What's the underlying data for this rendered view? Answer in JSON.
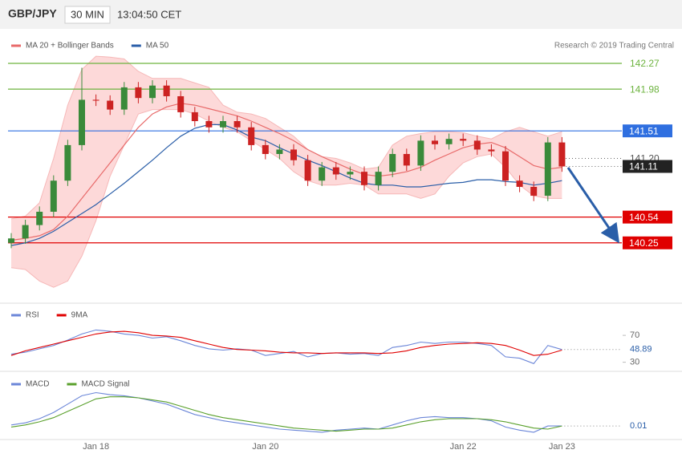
{
  "header": {
    "symbol": "GBP/JPY",
    "timeframe": "30 MIN",
    "time": "13:04:50 CET"
  },
  "credit": "Research © 2019 Trading Central",
  "chart_data": [
    {
      "type": "candlestick",
      "ylim": [
        139.58,
        142.64
      ],
      "up_color": "#3a8a3a",
      "down_color": "#cc2222",
      "candles": {
        "open": [
          140.25,
          140.3,
          140.45,
          140.6,
          140.95,
          141.35,
          141.86,
          141.85,
          141.75,
          142.0,
          141.88,
          142.02,
          141.9,
          141.72,
          141.62,
          141.55,
          141.62,
          141.55,
          141.35,
          141.25,
          141.3,
          141.18,
          140.95,
          141.1,
          141.02,
          141.05,
          140.9,
          141.05,
          141.25,
          141.12,
          141.4,
          141.36,
          141.42,
          141.4,
          141.3,
          141.28,
          140.95,
          140.88,
          140.78,
          141.38
        ],
        "high": [
          140.36,
          140.51,
          140.66,
          141.01,
          141.41,
          142.22,
          141.92,
          141.91,
          142.06,
          142.06,
          142.08,
          142.08,
          141.96,
          141.78,
          141.68,
          141.68,
          141.68,
          141.61,
          141.41,
          141.36,
          141.36,
          141.24,
          141.16,
          141.16,
          141.11,
          141.11,
          141.11,
          141.31,
          141.31,
          141.46,
          141.46,
          141.48,
          141.48,
          141.46,
          141.36,
          141.34,
          141.01,
          140.94,
          141.44,
          141.44
        ],
        "low": [
          140.19,
          140.24,
          140.39,
          140.54,
          140.89,
          141.29,
          141.79,
          141.69,
          141.69,
          141.82,
          141.82,
          141.84,
          141.66,
          141.56,
          141.49,
          141.49,
          141.49,
          141.29,
          141.19,
          141.19,
          141.12,
          140.89,
          140.89,
          140.96,
          140.96,
          140.84,
          140.84,
          140.99,
          141.06,
          141.06,
          141.3,
          141.3,
          141.34,
          141.24,
          141.22,
          140.89,
          140.82,
          140.72,
          140.72,
          141.05
        ],
        "close": [
          140.3,
          140.45,
          140.6,
          140.95,
          141.35,
          141.86,
          141.85,
          141.75,
          142.0,
          141.88,
          142.02,
          141.9,
          141.72,
          141.62,
          141.55,
          141.62,
          141.55,
          141.35,
          141.25,
          141.3,
          141.18,
          140.95,
          141.1,
          141.02,
          141.05,
          140.9,
          141.05,
          141.25,
          141.12,
          141.4,
          141.36,
          141.42,
          141.4,
          141.3,
          141.28,
          140.95,
          140.88,
          140.78,
          141.38,
          141.11
        ]
      },
      "series": [
        {
          "name": "MA 20 + Bollinger Bands",
          "color": "#e86a6a",
          "band_color": "#fdd9d9",
          "values": [
            140.28,
            140.3,
            140.33,
            140.4,
            140.55,
            140.75,
            140.95,
            141.15,
            141.35,
            141.55,
            141.7,
            141.78,
            141.82,
            141.8,
            141.76,
            141.72,
            141.68,
            141.62,
            141.55,
            141.48,
            141.4,
            141.3,
            141.22,
            141.15,
            141.08,
            141.02,
            141.0,
            141.02,
            141.05,
            141.1,
            141.18,
            141.25,
            141.32,
            141.36,
            141.38,
            141.32,
            141.22,
            141.12,
            141.08,
            141.1
          ],
          "upper": [
            140.52,
            140.55,
            140.7,
            141.2,
            141.8,
            142.2,
            142.35,
            142.34,
            142.32,
            142.18,
            142.1,
            142.1,
            142.1,
            142.05,
            142.0,
            141.8,
            141.72,
            141.7,
            141.65,
            141.55,
            141.45,
            141.3,
            141.22,
            141.2,
            141.15,
            141.08,
            141.1,
            141.35,
            141.45,
            141.48,
            141.5,
            141.5,
            141.49,
            141.45,
            141.42,
            141.5,
            141.55,
            141.5,
            141.45,
            141.5
          ],
          "lower": [
            139.97,
            139.95,
            139.82,
            139.75,
            139.82,
            140.1,
            140.5,
            141.0,
            141.35,
            141.7,
            141.75,
            141.75,
            141.75,
            141.7,
            141.62,
            141.55,
            141.5,
            141.4,
            141.3,
            141.2,
            141.05,
            140.95,
            140.9,
            140.9,
            140.92,
            140.9,
            140.8,
            140.8,
            140.8,
            140.75,
            140.8,
            141.0,
            141.15,
            141.22,
            141.25,
            141.1,
            140.9,
            140.78,
            140.75,
            140.75
          ]
        },
        {
          "name": "MA 50",
          "color": "#2a5ea8",
          "values": [
            140.22,
            140.25,
            140.3,
            140.38,
            140.48,
            140.58,
            140.68,
            140.8,
            140.92,
            141.05,
            141.18,
            141.32,
            141.45,
            141.54,
            141.58,
            141.58,
            141.52,
            141.44,
            141.4,
            141.32,
            141.25,
            141.18,
            141.12,
            141.05,
            140.98,
            140.92,
            140.9,
            140.9,
            140.88,
            140.88,
            140.9,
            140.92,
            140.93,
            140.96,
            140.96,
            140.94,
            140.93,
            140.9,
            140.92,
            140.95
          ]
        }
      ],
      "levels": [
        {
          "value": 142.27,
          "color": "#6db33f",
          "style": "solid",
          "tag": false
        },
        {
          "value": 141.98,
          "color": "#6db33f",
          "style": "solid",
          "tag": false
        },
        {
          "value": 141.51,
          "color": "#2f6fe0",
          "style": "solid",
          "tag": true
        },
        {
          "value": 141.2,
          "label": "141.20",
          "color": "#555555",
          "style": "dotted",
          "tag": false
        },
        {
          "value": 140.54,
          "color": "#e00000",
          "style": "solid",
          "tag": true
        },
        {
          "value": 140.25,
          "color": "#e00000",
          "style": "solid",
          "tag": true
        }
      ],
      "last_tag_color": "#222222"
    },
    {
      "type": "line",
      "ylim": [
        20,
        94
      ],
      "yticks": [
        70,
        30
      ],
      "series": [
        {
          "name": "RSI",
          "color": "#6b86d8",
          "values": [
            42,
            45,
            50,
            55,
            63,
            72,
            78,
            76,
            72,
            70,
            66,
            68,
            62,
            55,
            50,
            48,
            50,
            48,
            40,
            43,
            46,
            38,
            43,
            44,
            42,
            43,
            40,
            52,
            55,
            60,
            58,
            60,
            60,
            58,
            55,
            38,
            36,
            28,
            55,
            48.89
          ]
        },
        {
          "name": "9MA",
          "color": "#e00000",
          "values": [
            40,
            47,
            52,
            57,
            62,
            67,
            72,
            75,
            76,
            74,
            70,
            69,
            67,
            62,
            57,
            52,
            49,
            48,
            47,
            45,
            44,
            44,
            43,
            44,
            44,
            44,
            43,
            44,
            47,
            52,
            55,
            57,
            58,
            59,
            58,
            55,
            48,
            40,
            42,
            48
          ]
        }
      ]
    },
    {
      "type": "line",
      "ylim": [
        -0.12,
        0.48
      ],
      "categories": [
        null,
        null,
        null,
        null,
        null,
        null,
        "Jan 18",
        null,
        null,
        null,
        null,
        null,
        null,
        null,
        null,
        null,
        null,
        null,
        "Jan 20",
        null,
        null,
        null,
        null,
        null,
        null,
        null,
        null,
        null,
        null,
        null,
        null,
        null,
        "Jan 22",
        null,
        null,
        null,
        null,
        null,
        null,
        "Jan 23"
      ],
      "series": [
        {
          "name": "MACD",
          "color": "#6b86d8",
          "values": [
            0.02,
            0.04,
            0.08,
            0.14,
            0.22,
            0.3,
            0.33,
            0.31,
            0.3,
            0.28,
            0.25,
            0.22,
            0.17,
            0.12,
            0.09,
            0.06,
            0.04,
            0.02,
            0.0,
            -0.02,
            -0.03,
            -0.04,
            -0.05,
            -0.03,
            -0.02,
            -0.01,
            -0.02,
            0.02,
            0.06,
            0.09,
            0.1,
            0.09,
            0.09,
            0.08,
            0.06,
            0.0,
            -0.03,
            -0.05,
            0.01,
            0.01
          ]
        },
        {
          "name": "MACD Signal",
          "color": "#5aa02c",
          "values": [
            0.0,
            0.02,
            0.05,
            0.09,
            0.15,
            0.21,
            0.27,
            0.29,
            0.29,
            0.28,
            0.26,
            0.24,
            0.2,
            0.16,
            0.12,
            0.09,
            0.07,
            0.05,
            0.03,
            0.01,
            -0.01,
            -0.02,
            -0.03,
            -0.04,
            -0.03,
            -0.02,
            -0.02,
            -0.01,
            0.02,
            0.05,
            0.07,
            0.08,
            0.08,
            0.08,
            0.07,
            0.05,
            0.02,
            -0.01,
            -0.02,
            0.01
          ]
        }
      ]
    }
  ]
}
